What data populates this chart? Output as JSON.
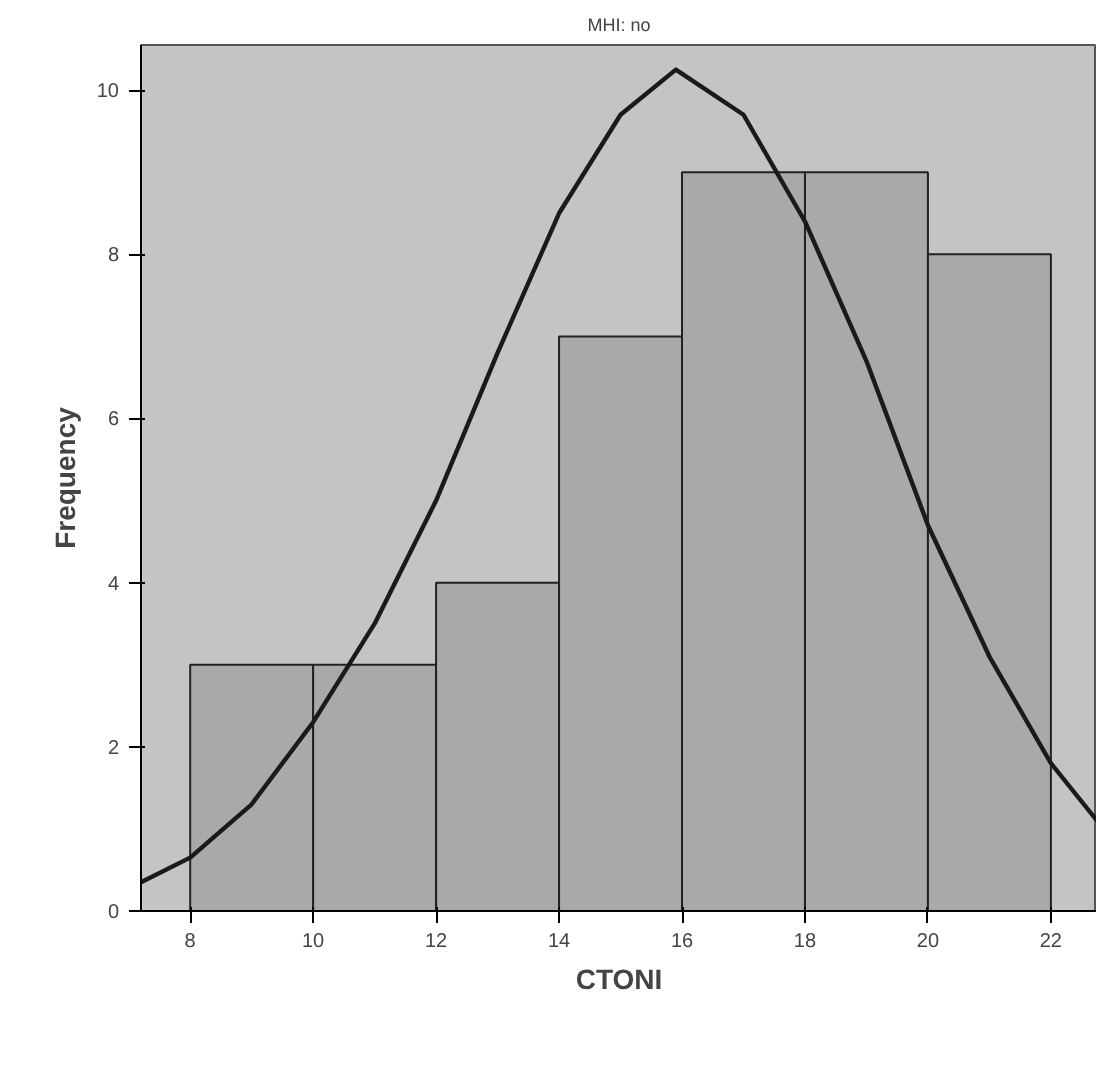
{
  "chart_data": {
    "type": "histogram",
    "title": "MHI: no",
    "xlabel": "CTONI",
    "ylabel": "Frequency",
    "xlim": [
      7.2,
      22.75
    ],
    "ylim": [
      0,
      10.55
    ],
    "xticks": [
      8,
      10,
      12,
      14,
      16,
      18,
      20,
      22
    ],
    "yticks": [
      0,
      2,
      4,
      6,
      8,
      10
    ],
    "grid": false,
    "series": [
      {
        "color": "#a9a9a9",
        "bins": [
          8,
          10,
          12,
          14,
          16,
          18,
          20,
          22
        ],
        "values": [
          3,
          3,
          4,
          7,
          9,
          9,
          8
        ]
      },
      {
        "type": "line",
        "color": "#1a1a1a",
        "x": [
          7.2,
          8,
          9,
          10,
          11,
          12,
          13,
          14,
          15,
          15.9,
          17,
          18,
          19,
          20,
          21,
          22,
          22.75
        ],
        "values": [
          0.35,
          0.65,
          1.3,
          2.3,
          3.5,
          5.0,
          6.8,
          8.5,
          9.7,
          10.25,
          9.7,
          8.4,
          6.7,
          4.7,
          3.1,
          1.8,
          1.1
        ]
      }
    ]
  }
}
